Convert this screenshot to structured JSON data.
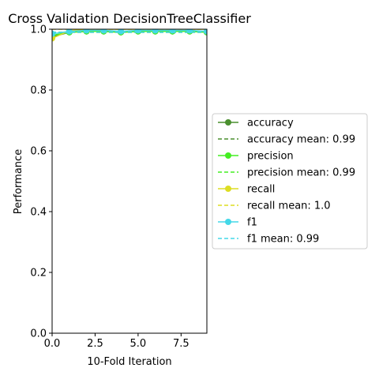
{
  "chart_data": {
    "type": "line",
    "title": "Cross Validation DecisionTreeClassifier",
    "xlabel": "10-Fold Iteration",
    "ylabel": "Performance",
    "xlim": [
      0,
      9
    ],
    "ylim": [
      0,
      1.0
    ],
    "x": [
      0,
      1,
      2,
      3,
      4,
      5,
      6,
      7,
      8,
      9
    ],
    "xticks": [
      "0.0",
      "2.5",
      "5.0",
      "7.5"
    ],
    "xtick_values": [
      0,
      2.5,
      5.0,
      7.5
    ],
    "yticks": [
      "0.0",
      "0.2",
      "0.4",
      "0.6",
      "0.8",
      "1.0"
    ],
    "ytick_values": [
      0,
      0.2,
      0.4,
      0.6,
      0.8,
      1.0
    ],
    "grid": false,
    "legend_position": "right, outside plot",
    "series": [
      {
        "name": "accuracy",
        "color": "#4a8f2f",
        "style": "solid-marker",
        "values": [
          0.975,
          0.99,
          0.993,
          0.993,
          0.99,
          0.993,
          0.993,
          0.993,
          0.993,
          0.99
        ]
      },
      {
        "name": "accuracy mean: 0.99",
        "color": "#4a8f2f",
        "style": "dashed",
        "value": 0.99
      },
      {
        "name": "precision",
        "color": "#44ee22",
        "style": "solid-marker",
        "values": [
          0.98,
          0.99,
          0.993,
          0.993,
          0.99,
          0.993,
          0.993,
          0.993,
          0.993,
          0.99
        ]
      },
      {
        "name": "precision mean: 0.99",
        "color": "#44ee22",
        "style": "dashed",
        "value": 0.99
      },
      {
        "name": "recall",
        "color": "#dddd22",
        "style": "solid-marker",
        "values": [
          0.97,
          0.995,
          1.0,
          1.0,
          1.0,
          1.0,
          1.0,
          1.0,
          1.0,
          1.0
        ]
      },
      {
        "name": "recall mean: 1.0",
        "color": "#dddd22",
        "style": "dashed",
        "value": 1.0
      },
      {
        "name": "f1",
        "color": "#44d8e8",
        "style": "solid-marker",
        "values": [
          0.985,
          0.993,
          0.996,
          0.996,
          0.993,
          0.996,
          0.996,
          0.996,
          0.996,
          0.993
        ]
      },
      {
        "name": "f1 mean: 0.99",
        "color": "#44d8e8",
        "style": "dashed",
        "value": 0.99
      }
    ]
  }
}
